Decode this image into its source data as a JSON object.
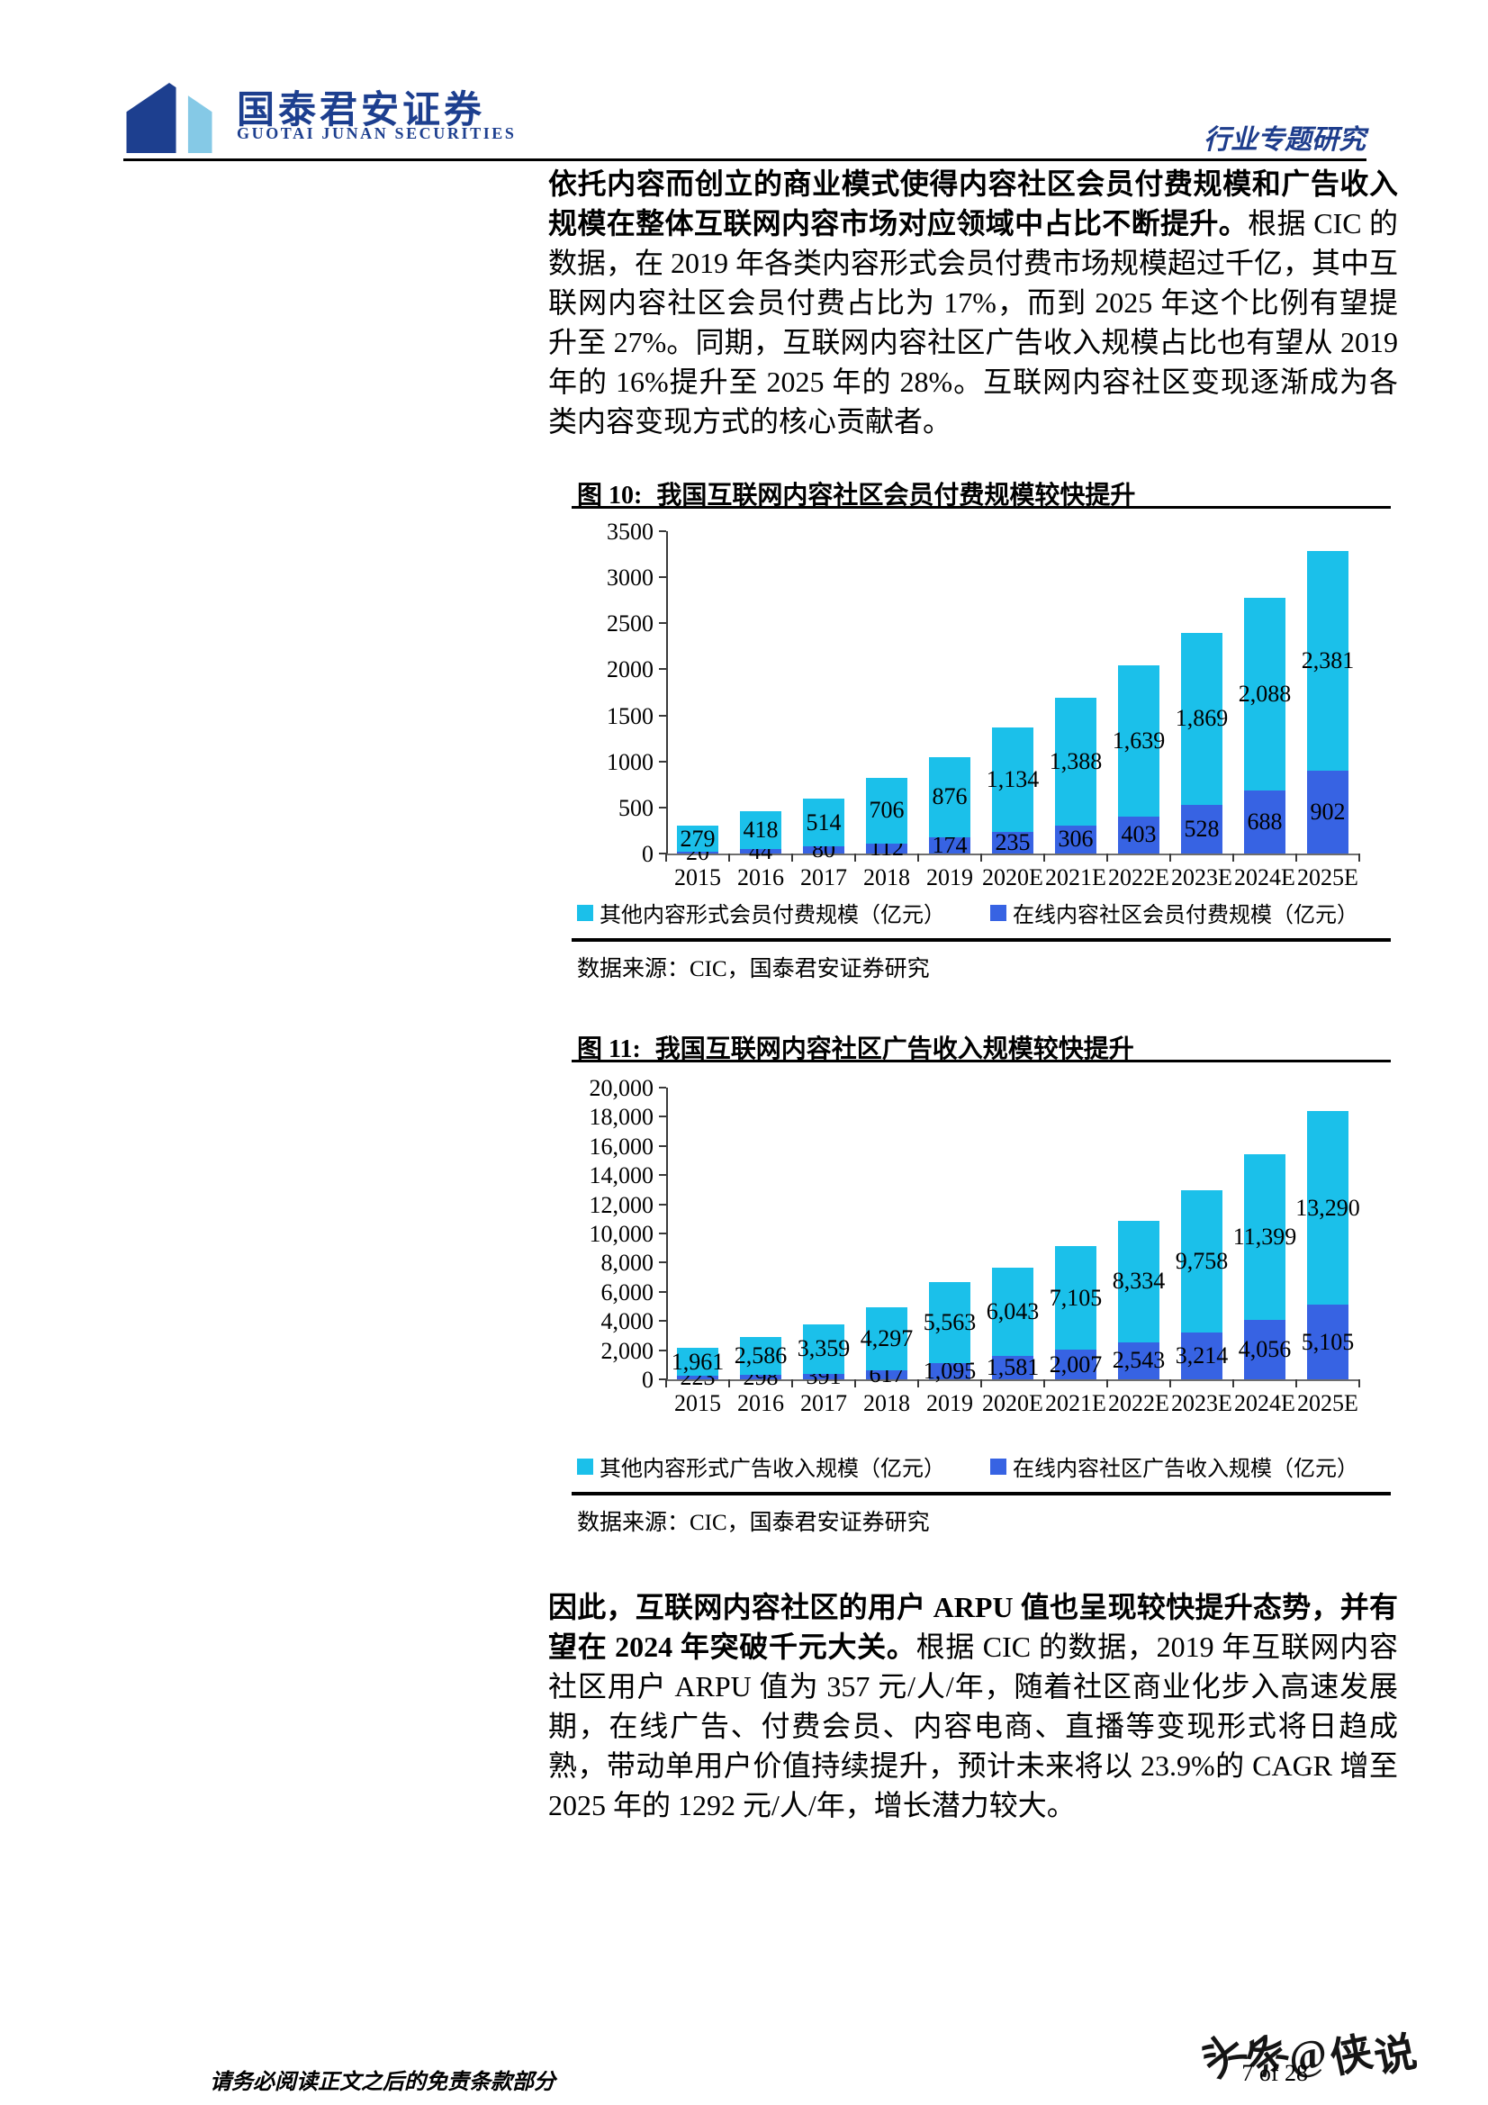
{
  "header": {
    "logo_cn": "国泰君安证券",
    "logo_en": "GUOTAI JUNAN SECURITIES",
    "report_type": "行业专题研究"
  },
  "paragraph1": {
    "bold": "依托内容而创立的商业模式使得内容社区会员付费规模和广告收入规模在整体互联网内容市场对应领域中占比不断提升。",
    "rest": "根据 CIC 的数据，在 2019 年各类内容形式会员付费市场规模超过千亿，其中互联网内容社区会员付费占比为 17%，而到 2025 年这个比例有望提升至 27%。同期，互联网内容社区广告收入规模占比也有望从 2019 年的 16%提升至 2025 年的 28%。互联网内容社区变现逐渐成为各类内容变现方式的核心贡献者。"
  },
  "paragraph2": {
    "bold": "因此，互联网内容社区的用户 ARPU 值也呈现较快提升态势，并有望在 2024 年突破千元大关。",
    "rest": "根据 CIC 的数据，2019 年互联网内容社区用户 ARPU 值为 357 元/人/年，随着社区商业化步入高速发展期，在线广告、付费会员、内容电商、直播等变现形式将日趋成熟，带动单用户价值持续提升，预计未来将以 23.9%的 CAGR 增至 2025 年的 1292 元/人/年，增长潜力较大。"
  },
  "chart_data": [
    {
      "type": "bar",
      "stacked": true,
      "figure_label": "图 10:",
      "title": "我国互联网内容社区会员付费规模较快提升",
      "categories": [
        "2015",
        "2016",
        "2017",
        "2018",
        "2019",
        "2020E",
        "2021E",
        "2022E",
        "2023E",
        "2024E",
        "2025E"
      ],
      "series": [
        {
          "name": "其他内容形式会员付费规模（亿元）",
          "color": "#1bc0ea",
          "stack": "top",
          "values": [
            279,
            418,
            514,
            706,
            876,
            1134,
            1388,
            1639,
            1869,
            2088,
            2381
          ]
        },
        {
          "name": "在线内容社区会员付费规模（亿元）",
          "color": "#3763e3",
          "stack": "bottom",
          "values": [
            20,
            44,
            80,
            112,
            174,
            235,
            306,
            403,
            528,
            688,
            902
          ]
        }
      ],
      "ylim": [
        0,
        3500
      ],
      "ytick_step": 500,
      "ytick_comma": false,
      "grid": false,
      "legend_position": "bottom",
      "source": "数据来源：CIC，国泰君安证券研究"
    },
    {
      "type": "bar",
      "stacked": true,
      "figure_label": "图 11:",
      "title": "我国互联网内容社区广告收入规模较快提升",
      "categories": [
        "2015",
        "2016",
        "2017",
        "2018",
        "2019",
        "2020E",
        "2021E",
        "2022E",
        "2023E",
        "2024E",
        "2025E"
      ],
      "series": [
        {
          "name": "其他内容形式广告收入规模（亿元）",
          "color": "#1bc0ea",
          "stack": "top",
          "values": [
            1961,
            2586,
            3359,
            4297,
            5563,
            6043,
            7105,
            8334,
            9758,
            11399,
            13290
          ]
        },
        {
          "name": "在线内容社区广告收入规模（亿元）",
          "color": "#3763e3",
          "stack": "bottom",
          "values": [
            223,
            298,
            391,
            617,
            1095,
            1581,
            2007,
            2543,
            3214,
            4056,
            5105
          ]
        }
      ],
      "ylim": [
        0,
        20000
      ],
      "ytick_step": 2000,
      "ytick_comma": true,
      "grid": false,
      "legend_position": "bottom",
      "source": "数据来源：CIC，国泰君安证券研究"
    }
  ],
  "footer": {
    "disclaimer": "请务必阅读正文之后的免责条款部分",
    "page_number": "7 of 28",
    "watermark_part1": "头条",
    "watermark_part2": "@侠说"
  },
  "colors": {
    "brand_navy": "#1d3f8f",
    "bar_cyan": "#1bc0ea",
    "bar_blue": "#3763e3"
  }
}
